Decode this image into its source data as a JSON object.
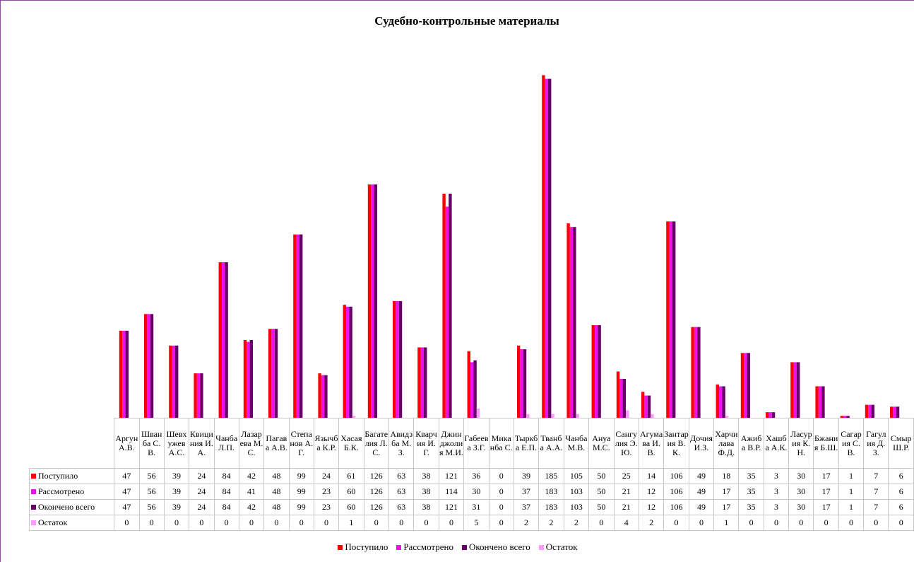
{
  "chart_data": {
    "type": "bar",
    "title": "Судебно-контрольные материалы",
    "categories": [
      "Аргун А.В.",
      "Шванба С.В.",
      "Шевхужев А.С.",
      "Квициния И.А.",
      "Чанба Л.П.",
      "Лазарева М.С.",
      "Пагава А.В.",
      "Степанов А.Г.",
      "Язычба К.Р.",
      "Хасая Б.К.",
      "Багателия Л.С.",
      "Авидзба М.З.",
      "Кварчия И.Г.",
      "Джинджолия М.И.",
      "Габеева З.Г.",
      "Миканба С.",
      "Тыркба Е.П.",
      "Тванба А.А.",
      "Чанба М.В.",
      "Ануа М.С.",
      "Сангулия Э.Ю.",
      "Агумава И.В.",
      "Зантария В.К.",
      "Дочия И.З.",
      "Харчилава Ф.Д.",
      "Ажиба В.Р.",
      "Хашба А.К.",
      "Ласурия К.Н.",
      "Бжания Б.Ш.",
      "Сагария С.В.",
      "Гагулия Д.З.",
      "Смыр Ш.Р."
    ],
    "series": [
      {
        "name": "Поступило",
        "color": "#ff0000",
        "values": [
          47,
          56,
          39,
          24,
          84,
          42,
          48,
          99,
          24,
          61,
          126,
          63,
          38,
          121,
          36,
          0,
          39,
          185,
          105,
          50,
          25,
          14,
          106,
          49,
          18,
          35,
          3,
          30,
          17,
          1,
          7,
          6
        ]
      },
      {
        "name": "Рассмотрено",
        "color": "#ee11ee",
        "values": [
          47,
          56,
          39,
          24,
          84,
          41,
          48,
          99,
          23,
          60,
          126,
          63,
          38,
          114,
          30,
          0,
          37,
          183,
          103,
          50,
          21,
          12,
          106,
          49,
          17,
          35,
          3,
          30,
          17,
          1,
          7,
          6
        ]
      },
      {
        "name": "Окончено всего",
        "color": "#660066",
        "values": [
          47,
          56,
          39,
          24,
          84,
          42,
          48,
          99,
          23,
          60,
          126,
          63,
          38,
          121,
          31,
          0,
          37,
          183,
          103,
          50,
          21,
          12,
          106,
          49,
          17,
          35,
          3,
          30,
          17,
          1,
          7,
          6
        ]
      },
      {
        "name": "Остаток",
        "color": "#ff99ff",
        "values": [
          0,
          0,
          0,
          0,
          0,
          0,
          0,
          0,
          0,
          1,
          0,
          0,
          0,
          0,
          5,
          0,
          2,
          2,
          2,
          0,
          4,
          2,
          0,
          0,
          1,
          0,
          0,
          0,
          0,
          0,
          0,
          0
        ]
      }
    ]
  }
}
